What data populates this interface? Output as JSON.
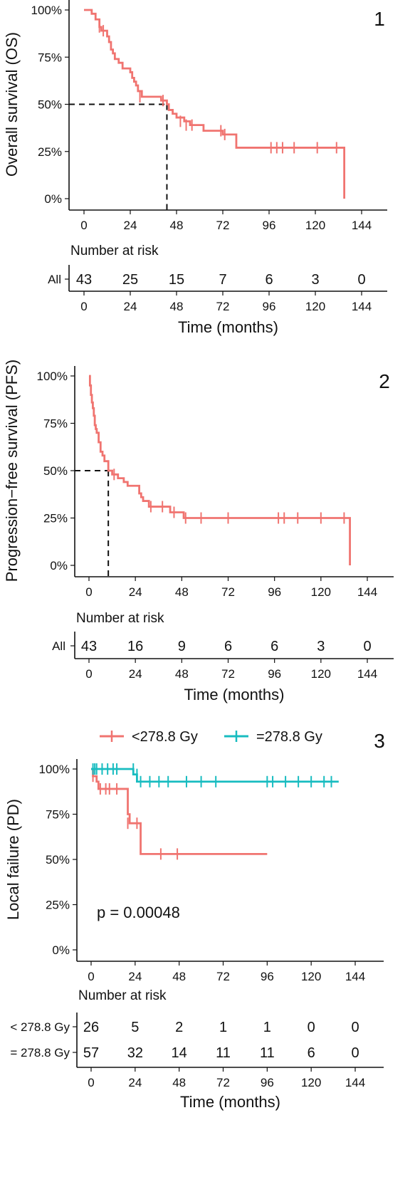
{
  "colors": {
    "primary": "#f07470",
    "secondary": "#18bcc0",
    "axis": "#111111"
  },
  "chart_data": [
    {
      "type": "line",
      "panel_label": "1",
      "ylabel": "Overall survival (OS)",
      "xlabel": "Time (months)",
      "xlim": [
        0,
        144
      ],
      "ylim": [
        0,
        1
      ],
      "x_ticks": [
        "0",
        "24",
        "48",
        "72",
        "96",
        "120",
        "144"
      ],
      "y_ticks": [
        "0%",
        "25%",
        "50%",
        "75%",
        "100%"
      ],
      "median": 43,
      "series": [
        {
          "color": "#f07470",
          "steps": [
            [
              0,
              1.0
            ],
            [
              4,
              0.98
            ],
            [
              6,
              0.95
            ],
            [
              8,
              0.91
            ],
            [
              9,
              0.89
            ],
            [
              12,
              0.86
            ],
            [
              13,
              0.83
            ],
            [
              14,
              0.79
            ],
            [
              15,
              0.77
            ],
            [
              16,
              0.74
            ],
            [
              18,
              0.72
            ],
            [
              20,
              0.69
            ],
            [
              24,
              0.67
            ],
            [
              25,
              0.64
            ],
            [
              26,
              0.62
            ],
            [
              27,
              0.6
            ],
            [
              28,
              0.57
            ],
            [
              30,
              0.54
            ],
            [
              40,
              0.52
            ],
            [
              43,
              0.5
            ],
            [
              44,
              0.47
            ],
            [
              46,
              0.45
            ],
            [
              48,
              0.43
            ],
            [
              52,
              0.41
            ],
            [
              55,
              0.39
            ],
            [
              62,
              0.36
            ],
            [
              72,
              0.34
            ],
            [
              79,
              0.27
            ],
            [
              135,
              0.27
            ],
            [
              135,
              0.0
            ]
          ],
          "censored": [
            [
              8,
              0.91
            ],
            [
              10,
              0.89
            ],
            [
              29,
              0.54
            ],
            [
              41,
              0.52
            ],
            [
              50,
              0.41
            ],
            [
              53,
              0.39
            ],
            [
              56,
              0.39
            ],
            [
              71,
              0.36
            ],
            [
              73,
              0.34
            ],
            [
              97,
              0.27
            ],
            [
              100,
              0.27
            ],
            [
              103,
              0.27
            ],
            [
              109,
              0.27
            ],
            [
              121,
              0.27
            ],
            [
              131,
              0.27
            ]
          ]
        }
      ],
      "risk_table": {
        "title": "Number at risk",
        "rows": [
          {
            "label": "All",
            "values": [
              "43",
              "25",
              "15",
              "7",
              "6",
              "3",
              "0"
            ]
          }
        ]
      }
    },
    {
      "type": "line",
      "panel_label": "2",
      "ylabel": "Progression−free survival (PFS)",
      "xlabel": "Time (months)",
      "xlim": [
        0,
        144
      ],
      "ylim": [
        0,
        1
      ],
      "x_ticks": [
        "0",
        "24",
        "48",
        "72",
        "96",
        "120",
        "144"
      ],
      "y_ticks": [
        "0%",
        "25%",
        "50%",
        "75%",
        "100%"
      ],
      "median": 10,
      "series": [
        {
          "color": "#f07470",
          "steps": [
            [
              0,
              1.0
            ],
            [
              0.5,
              0.95
            ],
            [
              1,
              0.9
            ],
            [
              1.5,
              0.86
            ],
            [
              2,
              0.83
            ],
            [
              2.5,
              0.79
            ],
            [
              3,
              0.74
            ],
            [
              3.5,
              0.72
            ],
            [
              4,
              0.7
            ],
            [
              5,
              0.65
            ],
            [
              6,
              0.6
            ],
            [
              7,
              0.58
            ],
            [
              8,
              0.55
            ],
            [
              10,
              0.5
            ],
            [
              12,
              0.48
            ],
            [
              15,
              0.46
            ],
            [
              18,
              0.44
            ],
            [
              20,
              0.42
            ],
            [
              26,
              0.38
            ],
            [
              27,
              0.36
            ],
            [
              28,
              0.34
            ],
            [
              31,
              0.31
            ],
            [
              42,
              0.28
            ],
            [
              49,
              0.25
            ],
            [
              135,
              0.25
            ],
            [
              135,
              0.0
            ]
          ],
          "censored": [
            [
              13,
              0.48
            ],
            [
              32,
              0.31
            ],
            [
              38,
              0.31
            ],
            [
              44,
              0.28
            ],
            [
              50,
              0.25
            ],
            [
              58,
              0.25
            ],
            [
              72,
              0.25
            ],
            [
              98,
              0.25
            ],
            [
              101,
              0.25
            ],
            [
              108,
              0.25
            ],
            [
              120,
              0.25
            ],
            [
              132,
              0.25
            ]
          ]
        }
      ],
      "risk_table": {
        "title": "Number at risk",
        "rows": [
          {
            "label": "All",
            "values": [
              "43",
              "16",
              "9",
              "6",
              "6",
              "3",
              "0"
            ]
          }
        ]
      }
    },
    {
      "type": "line",
      "panel_label": "3",
      "ylabel": "Local failure (PD)",
      "xlabel": "Time (months)",
      "xlim": [
        0,
        144
      ],
      "ylim": [
        0,
        1
      ],
      "x_ticks": [
        "0",
        "24",
        "48",
        "72",
        "96",
        "120",
        "144"
      ],
      "y_ticks": [
        "0%",
        "25%",
        "50%",
        "75%",
        "100%"
      ],
      "legend": "top",
      "annotation": "p = 0.00048",
      "series": [
        {
          "name": "<278.8 Gy",
          "color": "#f07470",
          "steps": [
            [
              0,
              1.0
            ],
            [
              1,
              0.96
            ],
            [
              3,
              0.93
            ],
            [
              4,
              0.89
            ],
            [
              19,
              0.89
            ],
            [
              20,
              0.75
            ],
            [
              21,
              0.7
            ],
            [
              27,
              0.53
            ],
            [
              96,
              0.53
            ]
          ],
          "censored": [
            [
              1,
              0.96
            ],
            [
              5,
              0.89
            ],
            [
              8,
              0.89
            ],
            [
              10,
              0.89
            ],
            [
              14,
              0.89
            ],
            [
              20,
              0.7
            ],
            [
              25,
              0.7
            ],
            [
              38,
              0.53
            ],
            [
              47,
              0.53
            ]
          ]
        },
        {
          "name": "=278.8 Gy",
          "color": "#18bcc0",
          "steps": [
            [
              0,
              1.0
            ],
            [
              22,
              1.0
            ],
            [
              23,
              0.97
            ],
            [
              25,
              0.93
            ],
            [
              135,
              0.93
            ]
          ],
          "censored": [
            [
              1,
              1.0
            ],
            [
              2,
              1.0
            ],
            [
              3,
              1.0
            ],
            [
              6,
              1.0
            ],
            [
              9,
              1.0
            ],
            [
              12,
              1.0
            ],
            [
              14,
              1.0
            ],
            [
              23,
              1.0
            ],
            [
              25,
              0.97
            ],
            [
              27,
              0.93
            ],
            [
              32,
              0.93
            ],
            [
              37,
              0.93
            ],
            [
              42,
              0.93
            ],
            [
              52,
              0.93
            ],
            [
              60,
              0.93
            ],
            [
              68,
              0.93
            ],
            [
              96,
              0.93
            ],
            [
              99,
              0.93
            ],
            [
              106,
              0.93
            ],
            [
              113,
              0.93
            ],
            [
              120,
              0.93
            ],
            [
              127,
              0.93
            ],
            [
              131,
              0.93
            ]
          ]
        }
      ],
      "risk_table": {
        "title": "Number at risk",
        "rows": [
          {
            "label": "< 278.8 Gy",
            "values": [
              "26",
              "5",
              "2",
              "1",
              "1",
              "0",
              "0"
            ]
          },
          {
            "label": "= 278.8 Gy",
            "values": [
              "57",
              "32",
              "14",
              "11",
              "11",
              "6",
              "0"
            ]
          }
        ]
      }
    }
  ]
}
